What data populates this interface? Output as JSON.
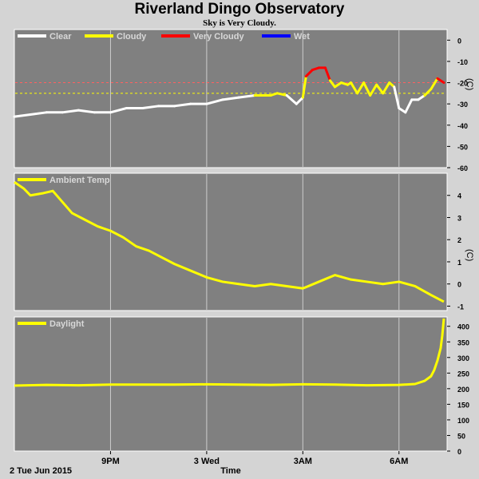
{
  "header": {
    "title": "Riverland Dingo Observatory",
    "subtitle": "Sky is Very Cloudy."
  },
  "footer": {
    "date_label": "2 Tue Jun 2015",
    "time_label": "Time"
  },
  "colors": {
    "background": "#d4d4d4",
    "panel": "#808080",
    "grid": "#cccccc",
    "clear": "#ffffff",
    "cloudy": "#ffff00",
    "very_cloudy": "#ff0000",
    "wet": "#0000ff",
    "threshold_cloudy": "#ffff00",
    "threshold_very_cloudy": "#ff6060"
  },
  "chart_data": [
    {
      "type": "line",
      "panel": "sky",
      "ylabel": "(C)",
      "ylim": [
        -60,
        5
      ],
      "yticks": [
        0,
        -10,
        -20,
        -30,
        -40,
        -50,
        -60
      ],
      "xlim": [
        18.0,
        31.5
      ],
      "grid": true,
      "legend": [
        "Clear",
        "Cloudy",
        "Very Cloudy",
        "Wet"
      ],
      "thresholds": [
        -20,
        -25
      ],
      "series": [
        {
          "name": "Sky",
          "x": [
            18.0,
            18.5,
            19.0,
            19.5,
            20.0,
            20.5,
            21.0,
            21.5,
            22.0,
            22.5,
            23.0,
            23.5,
            24.0,
            24.5,
            25.0,
            25.5,
            26.0,
            26.2,
            26.5,
            26.8,
            27.0,
            27.1,
            27.3,
            27.5,
            27.7,
            27.85,
            28.0,
            28.2,
            28.4,
            28.5,
            28.7,
            28.9,
            29.1,
            29.3,
            29.5,
            29.7,
            29.85,
            30.0,
            30.2,
            30.4,
            30.6,
            30.8,
            31.0,
            31.2,
            31.4
          ],
          "values": [
            -36,
            -35,
            -34,
            -34,
            -33,
            -34,
            -34,
            -32,
            -32,
            -31,
            -31,
            -30,
            -30,
            -28,
            -27,
            -26,
            -26,
            -25,
            -26,
            -30,
            -27,
            -17,
            -14,
            -13,
            -13,
            -19,
            -22,
            -20,
            -21,
            -20,
            -25,
            -20,
            -26,
            -21,
            -25,
            -20,
            -22,
            -32,
            -34,
            -28,
            -28,
            -26,
            -23,
            -18,
            -20
          ]
        }
      ]
    },
    {
      "type": "line",
      "panel": "ambient",
      "ylabel": "(C)",
      "ylim": [
        -1.2,
        5
      ],
      "yticks": [
        4,
        3,
        2,
        1,
        0,
        -1
      ],
      "xlim": [
        18.0,
        31.5
      ],
      "grid": true,
      "legend": [
        "Ambient Temp"
      ],
      "series": [
        {
          "name": "Ambient Temp",
          "x": [
            18.0,
            18.3,
            18.5,
            18.9,
            19.2,
            19.5,
            19.8,
            20.2,
            20.6,
            21.0,
            21.4,
            21.8,
            22.2,
            22.6,
            23.0,
            23.5,
            24.0,
            24.5,
            25.0,
            25.5,
            26.0,
            26.5,
            27.0,
            27.5,
            28.0,
            28.5,
            29.0,
            29.5,
            30.0,
            30.5,
            31.0,
            31.4
          ],
          "values": [
            4.6,
            4.3,
            4.0,
            4.1,
            4.2,
            3.7,
            3.2,
            2.9,
            2.6,
            2.4,
            2.1,
            1.7,
            1.5,
            1.2,
            0.9,
            0.6,
            0.3,
            0.1,
            0.0,
            -0.1,
            0.0,
            -0.1,
            -0.2,
            0.1,
            0.4,
            0.2,
            0.1,
            0.0,
            0.1,
            -0.1,
            -0.5,
            -0.8
          ]
        }
      ]
    },
    {
      "type": "line",
      "panel": "daylight",
      "ylabel": "",
      "ylim": [
        0,
        430
      ],
      "yticks": [
        400,
        350,
        300,
        250,
        200,
        150,
        100,
        50,
        0
      ],
      "xlim": [
        18.0,
        31.5
      ],
      "grid": true,
      "legend": [
        "Daylight"
      ],
      "xticks": [
        {
          "x": 21,
          "label": "9PM"
        },
        {
          "x": 24,
          "label": "3 Wed"
        },
        {
          "x": 27,
          "label": "3AM"
        },
        {
          "x": 30,
          "label": "6AM"
        }
      ],
      "series": [
        {
          "name": "Daylight",
          "x": [
            18.0,
            19.0,
            20.0,
            21.0,
            22.0,
            23.0,
            24.0,
            25.0,
            26.0,
            27.0,
            28.0,
            29.0,
            30.0,
            30.5,
            30.8,
            31.0,
            31.1,
            31.2,
            31.3,
            31.35,
            31.4
          ],
          "values": [
            210,
            212,
            211,
            213,
            213,
            213,
            214,
            213,
            212,
            214,
            213,
            211,
            212,
            215,
            225,
            240,
            260,
            290,
            330,
            370,
            425
          ]
        }
      ]
    }
  ]
}
